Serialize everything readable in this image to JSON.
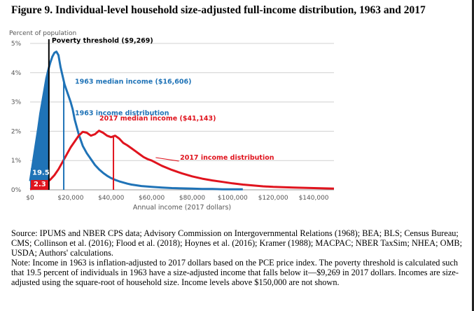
{
  "figure": {
    "title": "Figure 9. Individual-level household size-adjusted full-income distribution, 1963 and 2017",
    "source": "Source: IPUMS and NBER CPS data; Advisory Commission on Intergovernmental Relations (1968); BEA; BLS; Census Bureau; CMS; Collinson et al. (2016); Flood et al. (2018);  Hoynes et al. (2016); Kramer (1988); MACPAC; NBER TaxSim; NHEA; OMB; USDA; Authors' calculations.",
    "note": "Note: Income in 1963 is inflation-adjusted to 2017 dollars based on the PCE price index. The poverty threshold is calculated such that 19.5 percent of individuals in 1963 have a size-adjusted income that falls below it—$9,269 in 2017 dollars. Incomes are size-adjusted using the square-root of household size. Income levels above $150,000 are not shown."
  },
  "chart_data": {
    "type": "line",
    "ylabel": "Percent of population",
    "xlabel": "Annual income (2017 dollars)",
    "xlim": [
      0,
      150000
    ],
    "ylim": [
      0,
      5
    ],
    "x_ticks": [
      0,
      20000,
      40000,
      60000,
      80000,
      100000,
      120000,
      140000
    ],
    "x_tick_labels": [
      "$0",
      "$20,000",
      "$40,000",
      "$60,000",
      "$80,000",
      "$100,000",
      "$120,000",
      "$140,000"
    ],
    "y_ticks": [
      0,
      1,
      2,
      3,
      4,
      5
    ],
    "y_tick_labels": [
      "0%",
      "1%",
      "2%",
      "3%",
      "4%",
      "5%"
    ],
    "grid": true,
    "colors": {
      "s1963": "#1f73b7",
      "s2017": "#e0141e",
      "poverty": "#000000"
    },
    "series": [
      {
        "name": "1963 income distribution",
        "color": "#1f73b7",
        "x": [
          0,
          2000,
          4000,
          5000,
          6000,
          7000,
          8000,
          9000,
          10000,
          11000,
          12000,
          13000,
          14000,
          15000,
          16000,
          17000,
          18000,
          19000,
          20000,
          21000,
          22000,
          24000,
          26000,
          28000,
          30000,
          32000,
          34000,
          36000,
          38000,
          40000,
          42000,
          44000,
          46000,
          48000,
          50000,
          55000,
          60000,
          65000,
          70000,
          75000,
          80000,
          85000,
          90000,
          95000,
          100000,
          105000
        ],
        "y": [
          0.3,
          1.2,
          2.1,
          2.6,
          3.0,
          3.4,
          3.8,
          4.1,
          4.35,
          4.55,
          4.68,
          4.72,
          4.6,
          4.2,
          3.9,
          3.6,
          3.4,
          3.2,
          3.0,
          2.75,
          2.4,
          1.9,
          1.5,
          1.25,
          1.05,
          0.85,
          0.7,
          0.58,
          0.48,
          0.4,
          0.34,
          0.29,
          0.25,
          0.21,
          0.18,
          0.13,
          0.1,
          0.08,
          0.06,
          0.05,
          0.04,
          0.03,
          0.03,
          0.02,
          0.02,
          0.02
        ]
      },
      {
        "name": "2017 income distribution",
        "color": "#e0141e",
        "x": [
          0,
          2000,
          4000,
          6000,
          8000,
          10000,
          12000,
          14000,
          16000,
          18000,
          20000,
          22000,
          24000,
          26000,
          28000,
          30000,
          32000,
          34000,
          36000,
          38000,
          40000,
          42000,
          44000,
          46000,
          48000,
          50000,
          52000,
          54000,
          56000,
          58000,
          60000,
          65000,
          70000,
          75000,
          80000,
          85000,
          90000,
          95000,
          100000,
          105000,
          110000,
          115000,
          120000,
          125000,
          130000,
          135000,
          140000,
          145000,
          150000
        ],
        "y": [
          0.02,
          0.05,
          0.08,
          0.15,
          0.25,
          0.35,
          0.5,
          0.7,
          0.95,
          1.2,
          1.45,
          1.65,
          1.85,
          1.98,
          1.95,
          1.85,
          1.9,
          2.02,
          1.95,
          1.85,
          1.8,
          1.85,
          1.75,
          1.6,
          1.52,
          1.42,
          1.32,
          1.22,
          1.12,
          1.05,
          1.0,
          0.82,
          0.68,
          0.56,
          0.46,
          0.38,
          0.32,
          0.27,
          0.22,
          0.18,
          0.15,
          0.12,
          0.1,
          0.09,
          0.08,
          0.07,
          0.06,
          0.05,
          0.04
        ]
      }
    ],
    "markers": {
      "poverty_threshold": {
        "x": 9269,
        "label": "Poverty threshold ($9,269)"
      },
      "median_1963": {
        "x": 16606,
        "label": "1963 median income ($16,606)"
      },
      "median_2017": {
        "x": 41143,
        "label": "2017 median income ($41,143)"
      }
    },
    "annotations": {
      "below_poverty_1963": "19.5",
      "below_poverty_2017": "2.3"
    }
  }
}
